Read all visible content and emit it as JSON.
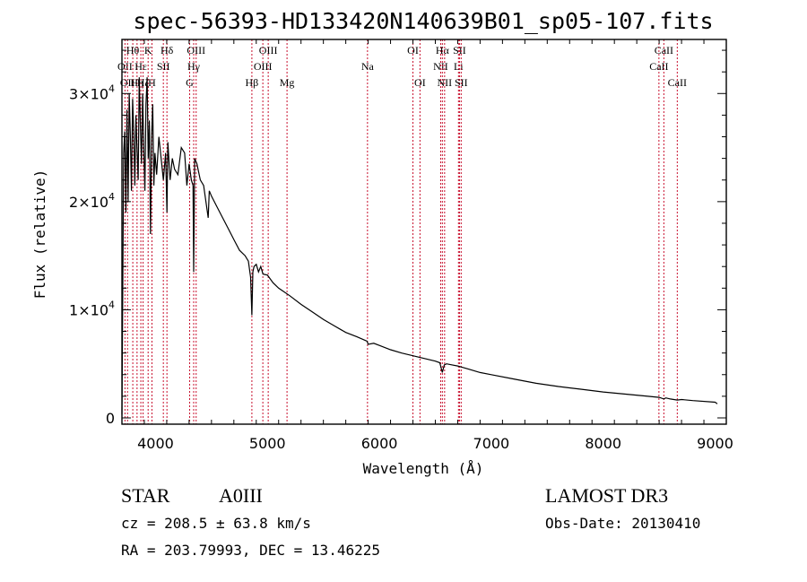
{
  "chart_data": {
    "type": "line",
    "title": "spec-56393-HD133420N140639B01_sp05-107.fits",
    "xlabel": "Wavelength (Å)",
    "ylabel": "Flux (relative)",
    "xlim": [
      3700,
      9100
    ],
    "ylim": [
      0,
      35000
    ],
    "x_ticks": [
      4000,
      5000,
      6000,
      7000,
      8000,
      9000
    ],
    "y_ticks": [
      {
        "value": 0,
        "mant": "0",
        "exp": ""
      },
      {
        "value": 10000,
        "mant": "1×10",
        "exp": "4"
      },
      {
        "value": 20000,
        "mant": "2×10",
        "exp": "4"
      },
      {
        "value": 30000,
        "mant": "3×10",
        "exp": "4"
      }
    ],
    "series": [
      {
        "name": "flux",
        "x": [
          3700,
          3715,
          3725,
          3735,
          3745,
          3755,
          3765,
          3775,
          3785,
          3795,
          3805,
          3815,
          3825,
          3835,
          3845,
          3855,
          3865,
          3875,
          3885,
          3895,
          3905,
          3915,
          3925,
          3935,
          3945,
          3955,
          3965,
          3975,
          3985,
          3995,
          4010,
          4030,
          4050,
          4070,
          4090,
          4102,
          4110,
          4130,
          4150,
          4170,
          4200,
          4230,
          4260,
          4280,
          4300,
          4320,
          4335,
          4341,
          4350,
          4370,
          4400,
          4430,
          4471,
          4480,
          4500,
          4550,
          4600,
          4650,
          4700,
          4750,
          4800,
          4830,
          4850,
          4861,
          4870,
          4880,
          4900,
          4920,
          4940,
          4960,
          5000,
          5050,
          5100,
          5200,
          5300,
          5400,
          5500,
          5600,
          5700,
          5800,
          5890,
          5900,
          5950,
          6000,
          6100,
          6200,
          6300,
          6400,
          6500,
          6540,
          6563,
          6580,
          6600,
          6700,
          6800,
          6900,
          7000,
          7200,
          7400,
          7600,
          7800,
          8000,
          8200,
          8400,
          8500,
          8542,
          8560,
          8600,
          8662,
          8700,
          8800,
          9000,
          9020
        ],
        "values": [
          300,
          24500,
          26500,
          19000,
          28500,
          20000,
          30000,
          26000,
          21000,
          29500,
          26500,
          21500,
          28000,
          25000,
          22000,
          31500,
          27000,
          23500,
          30000,
          25000,
          21000,
          29000,
          31500,
          24000,
          27500,
          17000,
          26000,
          29000,
          21500,
          24500,
          22500,
          26000,
          24000,
          22000,
          24500,
          19000,
          25500,
          22000,
          24000,
          23000,
          22500,
          25000,
          24500,
          21500,
          23500,
          22000,
          21500,
          13500,
          24000,
          23500,
          22000,
          21500,
          18500,
          21000,
          20500,
          19500,
          18500,
          17500,
          16500,
          15500,
          15000,
          14500,
          13000,
          9500,
          13500,
          14000,
          14200,
          13500,
          14000,
          13300,
          13200,
          12500,
          12000,
          11300,
          10500,
          9800,
          9100,
          8500,
          7900,
          7500,
          7100,
          6800,
          6900,
          6700,
          6300,
          6000,
          5750,
          5500,
          5250,
          5100,
          4200,
          4900,
          5000,
          4800,
          4500,
          4200,
          4000,
          3600,
          3200,
          2900,
          2650,
          2400,
          2200,
          2000,
          1900,
          1750,
          1850,
          1750,
          1650,
          1700,
          1600,
          1450,
          1300
        ]
      }
    ],
    "lines": [
      {
        "x": 3727,
        "label": "OII",
        "row": 1
      },
      {
        "x": 3750,
        "label": "OII",
        "row": 2
      },
      {
        "x": 3797,
        "label": "Hθ",
        "row": 0
      },
      {
        "x": 3835,
        "label": "Hη",
        "row": 2
      },
      {
        "x": 3869,
        "label": "Hε",
        "row": 1
      },
      {
        "x": 3889,
        "label": "Hζ",
        "row": 2
      },
      {
        "x": 3934,
        "label": "K",
        "row": 0
      },
      {
        "x": 3968,
        "label": "H",
        "row": 2
      },
      {
        "x": 4070,
        "label": "SII",
        "row": 1
      },
      {
        "x": 4102,
        "label": "Hδ",
        "row": 0
      },
      {
        "x": 4305,
        "label": "G",
        "row": 2
      },
      {
        "x": 4341,
        "label": "Hγ",
        "row": 1
      },
      {
        "x": 4363,
        "label": "OIII",
        "row": 0
      },
      {
        "x": 4861,
        "label": "Hβ",
        "row": 2
      },
      {
        "x": 4959,
        "label": "OIII",
        "row": 1
      },
      {
        "x": 5007,
        "label": "OIII",
        "row": 0
      },
      {
        "x": 5175,
        "label": "Mg",
        "row": 2
      },
      {
        "x": 5894,
        "label": "Na",
        "row": 1
      },
      {
        "x": 6300,
        "label": "OI",
        "row": 0
      },
      {
        "x": 6363,
        "label": "OI",
        "row": 2
      },
      {
        "x": 6548,
        "label": "NII",
        "row": 1
      },
      {
        "x": 6563,
        "label": "Hα",
        "row": 0
      },
      {
        "x": 6583,
        "label": "NII",
        "row": 2
      },
      {
        "x": 6707,
        "label": "Li",
        "row": 1
      },
      {
        "x": 6716,
        "label": "SII",
        "row": 0
      },
      {
        "x": 6731,
        "label": "SII",
        "row": 2
      },
      {
        "x": 8498,
        "label": "CaII",
        "row": 1
      },
      {
        "x": 8542,
        "label": "CaII",
        "row": 0
      },
      {
        "x": 8662,
        "label": "CaII",
        "row": 2
      }
    ]
  },
  "info": {
    "object_type": "STAR",
    "subclass": "A0III",
    "survey": "LAMOST DR3",
    "cz": "cz = 208.5 ± 63.8 km/s",
    "obs_date": "Obs-Date: 20130410",
    "coords": "RA = 203.79993, DEC =  13.46225"
  }
}
